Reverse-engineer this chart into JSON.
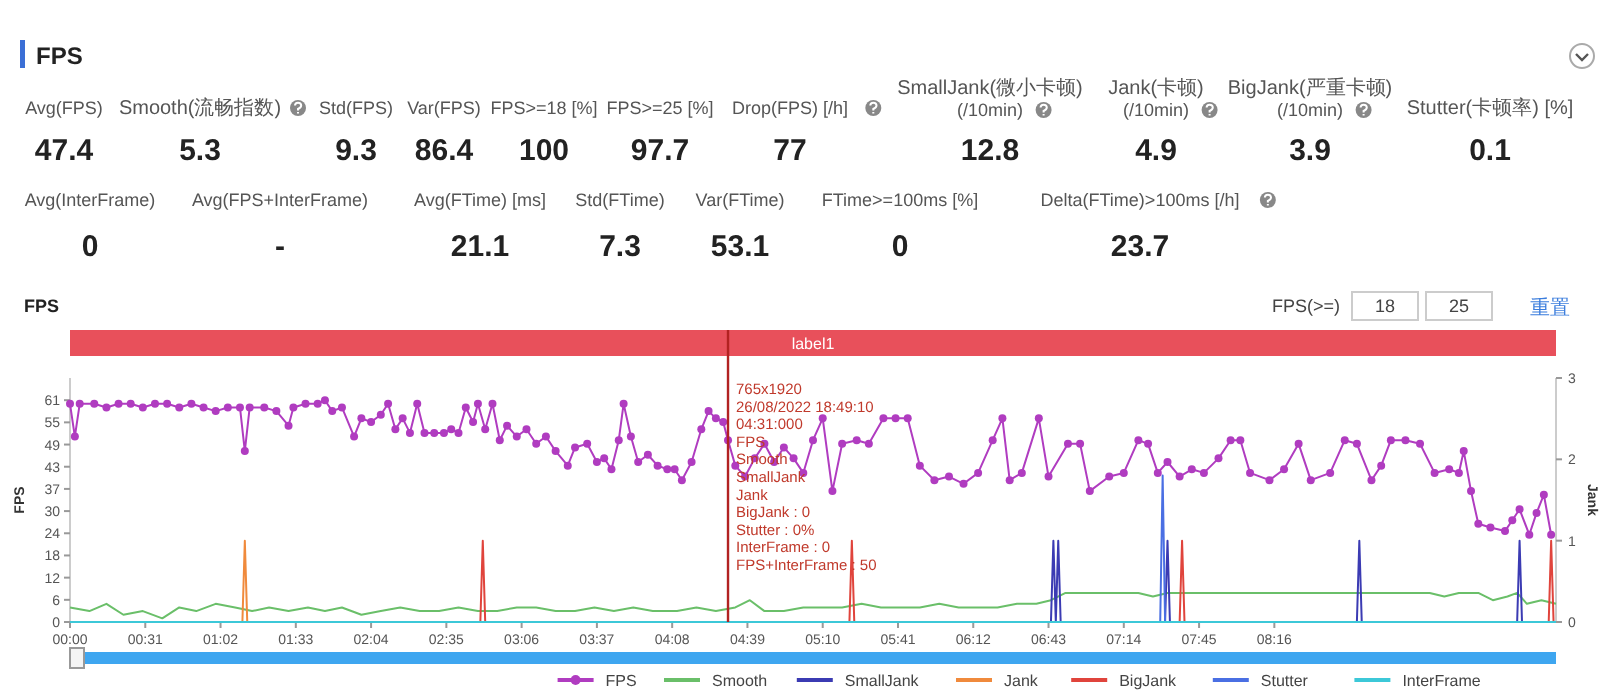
{
  "chart_data": [
    {
      "type": "other",
      "title": "FPS",
      "annotations": [
        "Avg(FPS)",
        "47.4",
        "Smooth(流畅指数)",
        "5.3",
        "Std(FPS)",
        "9.3",
        "Var(FPS)",
        "86.4",
        "FPS>=18 [%]",
        "100",
        "FPS>=25 [%]",
        "97.7",
        "Drop(FPS) [/h]",
        "77",
        "SmallJank(微小卡顿)\n(/10min)",
        "12.8",
        "Jank(卡顿)\n(/10min)",
        "4.9",
        "BigJank(严重卡顿)\n(/10min)",
        "3.9",
        "Stutter(卡顿率) [%]",
        "0.1",
        "Avg(InterFrame)",
        "0",
        "Avg(FPS+InterFrame)",
        "-",
        "Avg(FTime) [ms]",
        "21.1",
        "Std(FTime)",
        "7.3",
        "Var(FTime)",
        "53.1",
        "FTime>=100ms [%]",
        "0",
        "Delta(FTime)>100ms [/h]",
        "23.7"
      ]
    },
    {
      "type": "line",
      "title": "FPS",
      "ylabel": "FPS",
      "y2label": "Jank",
      "legend": "bottom",
      "line_style": "solid",
      "xlim": [
        0,
        612
      ],
      "xticks": [
        {
          "value": 0,
          "label": "00:00"
        },
        {
          "value": 31,
          "label": "00:31"
        },
        {
          "value": 62,
          "label": "01:02"
        },
        {
          "value": 93,
          "label": "01:33"
        },
        {
          "value": 124,
          "label": "02:04"
        },
        {
          "value": 155,
          "label": "02:35"
        },
        {
          "value": 186,
          "label": "03:06"
        },
        {
          "value": 217,
          "label": "03:37"
        },
        {
          "value": 248,
          "label": "04:08"
        },
        {
          "value": 279,
          "label": "04:39"
        },
        {
          "value": 310,
          "label": "05:10"
        },
        {
          "value": 341,
          "label": "05:41"
        },
        {
          "value": 372,
          "label": "06:12"
        },
        {
          "value": 403,
          "label": "06:43"
        },
        {
          "value": 434,
          "label": "07:14"
        },
        {
          "value": 465,
          "label": "07:45"
        },
        {
          "value": 496,
          "label": "08:16"
        }
      ],
      "ylim": [
        0,
        67.1
      ],
      "yticks": [
        0,
        {
          "value": 6.1,
          "label": "6"
        },
        {
          "value": 12.2,
          "label": "12"
        },
        {
          "value": 18.3,
          "label": "18"
        },
        {
          "value": 24.4,
          "label": "24"
        },
        {
          "value": 30.5,
          "label": "30"
        },
        {
          "value": 36.6,
          "label": "37"
        },
        {
          "value": 42.7,
          "label": "43"
        },
        {
          "value": 48.8,
          "label": "49"
        },
        {
          "value": 54.9,
          "label": "55"
        },
        {
          "value": 61,
          "label": "61"
        }
      ],
      "y2lim": [
        0,
        3
      ],
      "y2ticks": [
        0,
        1,
        2,
        3
      ],
      "ref_lines": [
        {
          "axis": "x",
          "value": 271,
          "color": "#b22222"
        }
      ],
      "annotations": [
        "FPS(>=)",
        "18",
        "25",
        "重置",
        "label1",
        "765x1920",
        "26/08/2022 18:49:10",
        "04:31:000",
        "FPS",
        "Smooth",
        "SmallJank",
        "Jank",
        "BigJank : 0",
        "Stutter : 0%",
        "InterFrame : 0",
        "FPS+InterFrame : 50"
      ],
      "series": [
        {
          "name": "FPS",
          "color": "#b03cc0",
          "marker": "circle",
          "x": [
            0,
            2,
            4,
            10,
            15,
            20,
            25,
            30,
            35,
            40,
            45,
            50,
            55,
            60,
            65,
            70,
            72,
            74,
            80,
            85,
            90,
            92,
            97,
            102,
            105,
            108,
            112,
            117,
            120,
            124,
            128,
            131,
            134,
            137,
            140,
            143,
            146,
            150,
            154,
            157,
            160,
            163,
            166,
            168,
            171,
            174,
            177,
            180,
            184,
            188,
            192,
            196,
            200,
            205,
            208,
            213,
            217,
            220,
            223,
            226,
            228,
            231,
            234,
            238,
            242,
            246,
            249,
            252,
            256,
            260,
            263,
            266,
            269,
            271,
            274,
            278,
            282,
            286,
            290,
            294,
            298,
            302,
            306,
            310,
            314,
            318,
            324,
            329,
            335,
            340,
            345,
            350,
            356,
            362,
            368,
            374,
            380,
            384,
            387,
            392,
            399,
            403,
            411,
            416,
            420,
            428,
            434,
            440,
            444,
            448,
            452,
            457,
            462,
            467,
            473,
            478,
            482,
            486,
            494,
            500,
            506,
            511,
            519,
            525,
            530,
            536,
            540,
            544,
            550,
            556,
            562,
            568,
            572,
            574,
            577,
            580,
            585,
            591,
            594,
            597,
            601,
            604,
            607,
            610
          ],
          "values": [
            60,
            51,
            60,
            60,
            59,
            60,
            60,
            59,
            60,
            60,
            59,
            60,
            59,
            58,
            59,
            59,
            47,
            59,
            59,
            58,
            54,
            59,
            60,
            60,
            61,
            58,
            59,
            51,
            56,
            55,
            57,
            60,
            53,
            56,
            52,
            60,
            52,
            52,
            52,
            53,
            52,
            59,
            55,
            60,
            53,
            60,
            50,
            54,
            51,
            53,
            49,
            51,
            47,
            43,
            48,
            49,
            44,
            45,
            42,
            50,
            60,
            51,
            44,
            46,
            43,
            42,
            42,
            39,
            44,
            53,
            58,
            56,
            55,
            50,
            43,
            40,
            45,
            49,
            44,
            48,
            45,
            41,
            50,
            56,
            36,
            49,
            50,
            49,
            56,
            56,
            56,
            43,
            39,
            40,
            38,
            41,
            50,
            56,
            39,
            41,
            56,
            40,
            49,
            49,
            36,
            40,
            41,
            50,
            49,
            41,
            44,
            40,
            42,
            41,
            45,
            50,
            50,
            41,
            39,
            42,
            49,
            39,
            41,
            50,
            49,
            39,
            43,
            50,
            50,
            49,
            41,
            42,
            41,
            47,
            36,
            27,
            26,
            25,
            28,
            31,
            24,
            30,
            35,
            24
          ]
        },
        {
          "name": "Smooth",
          "color": "#6abf69",
          "x": [
            0,
            8,
            15,
            22,
            30,
            38,
            45,
            52,
            60,
            68,
            75,
            82,
            90,
            98,
            105,
            112,
            120,
            128,
            136,
            144,
            152,
            160,
            168,
            176,
            184,
            192,
            200,
            208,
            216,
            224,
            232,
            240,
            250,
            258,
            266,
            274,
            280,
            286,
            294,
            302,
            310,
            318,
            326,
            334,
            342,
            350,
            358,
            366,
            374,
            382,
            390,
            398,
            404,
            410,
            420,
            430,
            440,
            446,
            452,
            460,
            470,
            480,
            490,
            500,
            510,
            520,
            530,
            540,
            550,
            560,
            566,
            572,
            580,
            586,
            592,
            596,
            600,
            606,
            612
          ],
          "values": [
            4,
            3,
            5,
            2,
            3,
            1,
            4,
            3,
            5,
            4,
            3,
            4,
            3,
            4,
            3,
            4,
            2,
            3,
            4,
            3,
            3,
            4,
            3,
            3,
            4,
            4,
            3,
            3,
            4,
            3,
            4,
            3,
            3,
            4,
            3,
            4,
            6,
            3,
            3,
            4,
            4,
            4,
            5,
            4,
            4,
            4,
            5,
            4,
            4,
            4,
            5,
            5,
            6,
            8,
            8,
            8,
            8,
            7,
            8,
            8,
            8,
            8,
            8,
            8,
            8,
            8,
            8,
            8,
            8,
            8,
            7,
            8,
            8,
            6,
            7,
            8,
            5,
            6,
            5
          ]
        },
        {
          "name": "SmallJank",
          "color": "#3b3bb3",
          "axis": "y2",
          "x": [
            404,
            405,
            406,
            407,
            408,
            440,
            451,
            452,
            453,
            500,
            530,
            531,
            532,
            560,
            596,
            597,
            598
          ],
          "values": [
            0,
            1,
            0,
            1,
            0,
            null,
            0,
            1,
            0,
            null,
            0,
            1,
            0,
            null,
            0,
            1,
            0
          ]
        },
        {
          "name": "Jank",
          "color": "#f08a3c",
          "axis": "y2",
          "x": [
            71,
            72,
            73
          ],
          "values": [
            0,
            1,
            0
          ]
        },
        {
          "name": "BigJank",
          "color": "#e0443c",
          "axis": "y2",
          "x": [
            169,
            170,
            171,
            200,
            321,
            322,
            323,
            400,
            457,
            458,
            459,
            500,
            609,
            610,
            611
          ],
          "values": [
            0,
            1,
            0,
            null,
            0,
            1,
            0,
            null,
            0,
            1,
            0,
            null,
            0,
            1,
            0
          ]
        },
        {
          "name": "Stutter",
          "color": "#4a6fe3",
          "axis": "y2",
          "x": [
            449,
            450,
            451
          ],
          "values": [
            0,
            1.8,
            0
          ]
        },
        {
          "name": "InterFrame",
          "color": "#3cc8d8",
          "axis": "y2",
          "x": [
            0,
            612
          ],
          "values": [
            0,
            0
          ]
        }
      ]
    }
  ]
}
